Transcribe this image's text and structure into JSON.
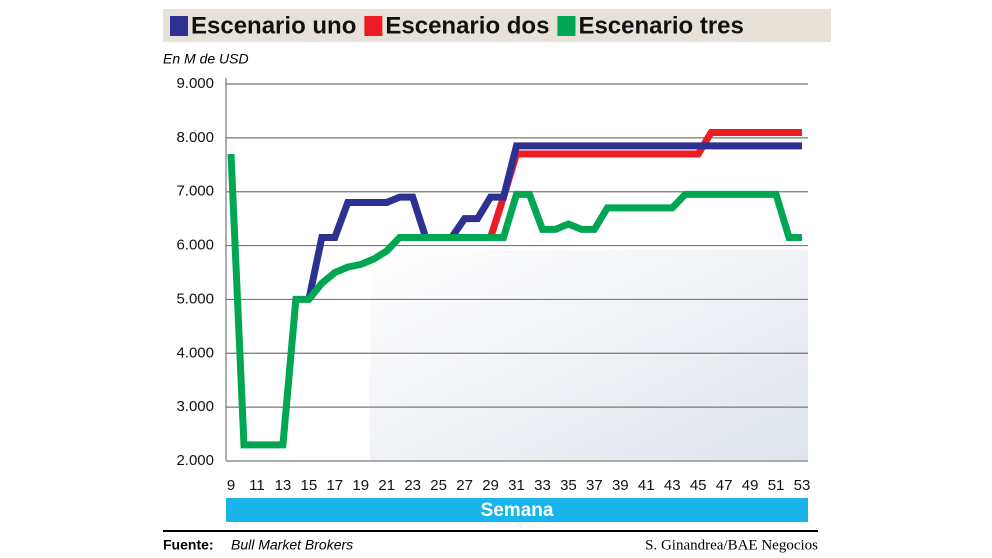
{
  "chart_data": {
    "type": "line",
    "ylabel": "En M de USD",
    "xlabel": "Semana",
    "x": [
      9,
      10,
      11,
      12,
      13,
      14,
      15,
      16,
      17,
      18,
      19,
      20,
      21,
      22,
      23,
      24,
      25,
      26,
      27,
      28,
      29,
      30,
      31,
      32,
      33,
      34,
      35,
      36,
      37,
      38,
      39,
      40,
      41,
      42,
      43,
      44,
      45,
      46,
      47,
      48,
      49,
      50,
      51,
      52,
      53
    ],
    "xlim": [
      9,
      53
    ],
    "xticks": [
      9,
      11,
      13,
      15,
      17,
      19,
      21,
      23,
      25,
      27,
      29,
      31,
      33,
      35,
      37,
      39,
      41,
      43,
      45,
      47,
      49,
      51,
      53
    ],
    "ylim": [
      2000,
      9000
    ],
    "yticks": [
      {
        "value": 2000,
        "label": "2.000"
      },
      {
        "value": 3000,
        "label": "3.000"
      },
      {
        "value": 4000,
        "label": "4.000"
      },
      {
        "value": 5000,
        "label": "5.000"
      },
      {
        "value": 6000,
        "label": "6.000"
      },
      {
        "value": 7000,
        "label": "7.000"
      },
      {
        "value": 8000,
        "label": "8.000"
      },
      {
        "value": 9000,
        "label": "9.000"
      }
    ],
    "grid": true,
    "series": [
      {
        "name": "Escenario uno",
        "color": "#2e3192",
        "values": [
          null,
          null,
          null,
          null,
          null,
          null,
          5000,
          6150,
          6150,
          6800,
          6800,
          6800,
          6800,
          6900,
          6900,
          6150,
          6150,
          6150,
          6500,
          6500,
          6900,
          6900,
          7850,
          7850,
          7850,
          7850,
          7850,
          7850,
          7850,
          7850,
          7850,
          7850,
          7850,
          7850,
          7850,
          7850,
          7850,
          7850,
          7850,
          7850,
          7850,
          7850,
          7850,
          7850,
          7850
        ]
      },
      {
        "name": "Escenario dos",
        "color": "#ed1c24",
        "values": [
          null,
          null,
          null,
          null,
          null,
          null,
          null,
          null,
          null,
          null,
          null,
          null,
          null,
          null,
          null,
          null,
          null,
          null,
          null,
          null,
          6150,
          6900,
          7700,
          7700,
          7700,
          7700,
          7700,
          7700,
          7700,
          7700,
          7700,
          7700,
          7700,
          7700,
          7700,
          7700,
          7700,
          8100,
          8100,
          8100,
          8100,
          8100,
          8100,
          8100,
          8100
        ]
      },
      {
        "name": "Escenario tres",
        "color": "#00a651",
        "values": [
          7700,
          2300,
          2300,
          2300,
          2300,
          5000,
          5000,
          5300,
          5500,
          5600,
          5650,
          5750,
          5900,
          6150,
          6150,
          6150,
          6150,
          6150,
          6150,
          6150,
          6150,
          6150,
          6950,
          6950,
          6300,
          6300,
          6400,
          6300,
          6300,
          6700,
          6700,
          6700,
          6700,
          6700,
          6700,
          6950,
          6950,
          6950,
          6950,
          6950,
          6950,
          6950,
          6950,
          6150,
          6150
        ]
      }
    ],
    "source_label": "Fuente:",
    "source": "Bull Market Brokers",
    "credit": "S. Ginandrea/BAE Negocios"
  }
}
